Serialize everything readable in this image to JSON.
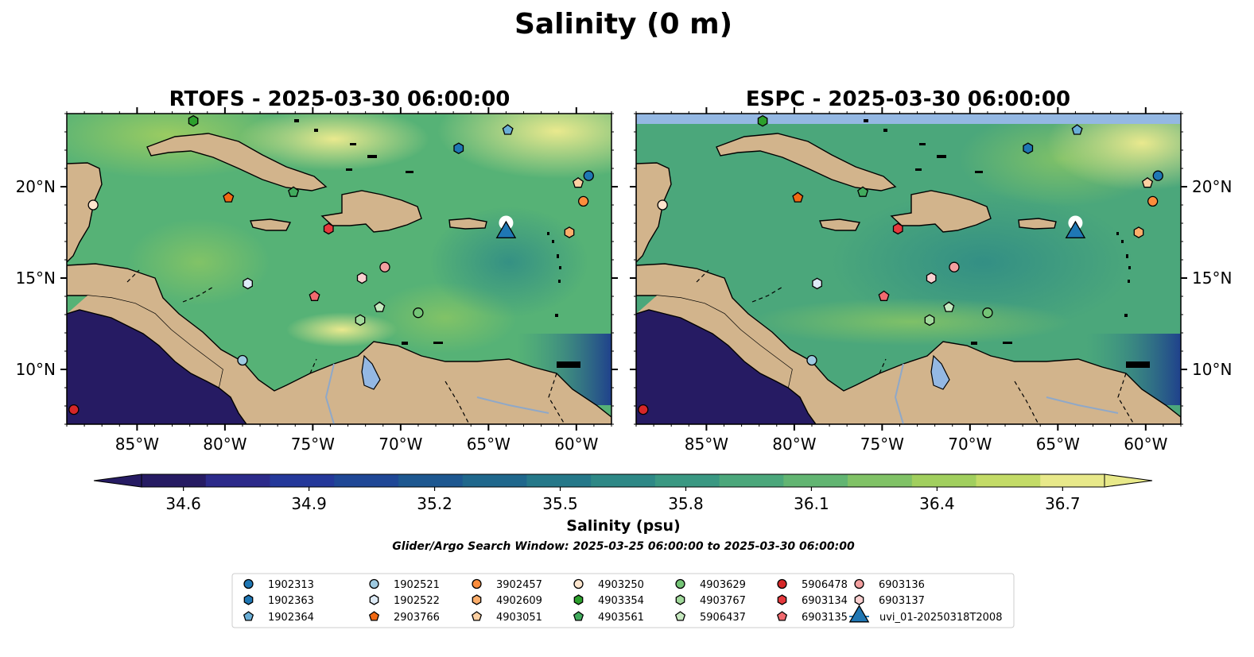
{
  "figure": {
    "title": "Salinity (0 m)",
    "colorbar_label": "Salinity (psu)",
    "search_window": "Glider/Argo Search Window: 2025-03-25 06:00:00 to 2025-03-30 06:00:00"
  },
  "chart_data": {
    "type": "heatmap",
    "title": "Salinity (0 m)",
    "variable": "Sea surface salinity",
    "units": "psu",
    "panels": [
      {
        "id": "rtofs",
        "title": "RTOFS - 2025-03-30 06:00:00"
      },
      {
        "id": "espc",
        "title": "ESPC - 2025-03-30 06:00:00"
      }
    ],
    "xlim": [
      -89,
      -58
    ],
    "ylim": [
      7,
      24
    ],
    "xticks": [
      -85,
      -80,
      -75,
      -70,
      -65,
      -60
    ],
    "xtick_labels": [
      "85°W",
      "80°W",
      "75°W",
      "70°W",
      "65°W",
      "60°W"
    ],
    "yticks": [
      10,
      15,
      20
    ],
    "ytick_labels": [
      "10°N",
      "15°N",
      "20°N"
    ],
    "colorbar": {
      "vmin": 34.5,
      "vmax": 36.8,
      "ticks": [
        34.6,
        34.9,
        35.2,
        35.5,
        35.8,
        36.1,
        36.4,
        36.7
      ],
      "tick_labels": [
        "34.6",
        "34.9",
        "35.2",
        "35.5",
        "35.8",
        "36.1",
        "36.4",
        "36.7"
      ],
      "extend": "both",
      "colors": [
        "#261b63",
        "#2c2a8a",
        "#24389a",
        "#1f4796",
        "#1d5790",
        "#1f678c",
        "#257889",
        "#2e8886",
        "#3a9882",
        "#4ba77b",
        "#62b572",
        "#80c266",
        "#a1cf5e",
        "#c3db67",
        "#e8e98a"
      ]
    },
    "markers": [
      {
        "id": "1902313",
        "shape": "circle",
        "color": "#1f77b4",
        "lon": -59.3,
        "lat": 20.6
      },
      {
        "id": "1902363",
        "shape": "hexagon",
        "color": "#1f77b4",
        "lon": -66.7,
        "lat": 22.1
      },
      {
        "id": "1902364",
        "shape": "pentagon",
        "color": "#6aaed6",
        "lon": -63.9,
        "lat": 23.1
      },
      {
        "id": "1902521",
        "shape": "circle",
        "color": "#9ecae1",
        "lon": -79.0,
        "lat": 10.5
      },
      {
        "id": "1902522",
        "shape": "hexagon",
        "color": "#deebf7",
        "lon": -78.7,
        "lat": 14.7
      },
      {
        "id": "2903766",
        "shape": "pentagon",
        "color": "#f16913",
        "lon": -79.8,
        "lat": 19.4
      },
      {
        "id": "3902457",
        "shape": "circle",
        "color": "#fd8d3c",
        "lon": -59.6,
        "lat": 19.2
      },
      {
        "id": "4902609",
        "shape": "hexagon",
        "color": "#fdae6b",
        "lon": -60.4,
        "lat": 17.5
      },
      {
        "id": "4903051",
        "shape": "pentagon",
        "color": "#fdd0a2",
        "lon": -59.9,
        "lat": 20.2
      },
      {
        "id": "4903250",
        "shape": "circle",
        "color": "#fee6ce",
        "lon": -87.5,
        "lat": 19.0
      },
      {
        "id": "4903354",
        "shape": "hexagon",
        "color": "#2ca02c",
        "lon": -81.8,
        "lat": 23.6
      },
      {
        "id": "4903561",
        "shape": "pentagon",
        "color": "#41ab5d",
        "lon": -76.1,
        "lat": 19.7
      },
      {
        "id": "4903629",
        "shape": "circle",
        "color": "#74c476",
        "lon": -69.0,
        "lat": 13.1
      },
      {
        "id": "4903767",
        "shape": "hexagon",
        "color": "#a1d99b",
        "lon": -72.3,
        "lat": 12.7
      },
      {
        "id": "5906437",
        "shape": "pentagon",
        "color": "#c7e9c0",
        "lon": -71.2,
        "lat": 13.4
      },
      {
        "id": "5906478",
        "shape": "circle",
        "color": "#d62728",
        "lon": -88.6,
        "lat": 7.8
      },
      {
        "id": "6903134",
        "shape": "hexagon",
        "color": "#e6393d",
        "lon": -74.1,
        "lat": 17.7
      },
      {
        "id": "6903135",
        "shape": "pentagon",
        "color": "#f16a6f",
        "lon": -74.9,
        "lat": 14.0
      },
      {
        "id": "6903136",
        "shape": "circle",
        "color": "#f4a0a0",
        "lon": -70.9,
        "lat": 15.6
      },
      {
        "id": "6903137",
        "shape": "hexagon",
        "color": "#fbd0d0",
        "lon": -72.2,
        "lat": 15.0
      }
    ],
    "glider": {
      "id": "uvi_01-20250318T2008",
      "shape": "triangle",
      "color": "#1f77b4",
      "lon": -64.0,
      "lat": 17.5
    },
    "legend": {
      "placement": "bottom-center",
      "columns": [
        [
          "1902313",
          "1902363",
          "1902364"
        ],
        [
          "1902521",
          "1902522",
          "2903766"
        ],
        [
          "3902457",
          "4902609",
          "4903051"
        ],
        [
          "4903250",
          "4903354",
          "4903561"
        ],
        [
          "4903629",
          "4903767",
          "5906437"
        ],
        [
          "5906478",
          "6903134",
          "6903135"
        ],
        [
          "6903136",
          "6903137",
          "uvi_01-20250318T2008"
        ]
      ]
    }
  }
}
